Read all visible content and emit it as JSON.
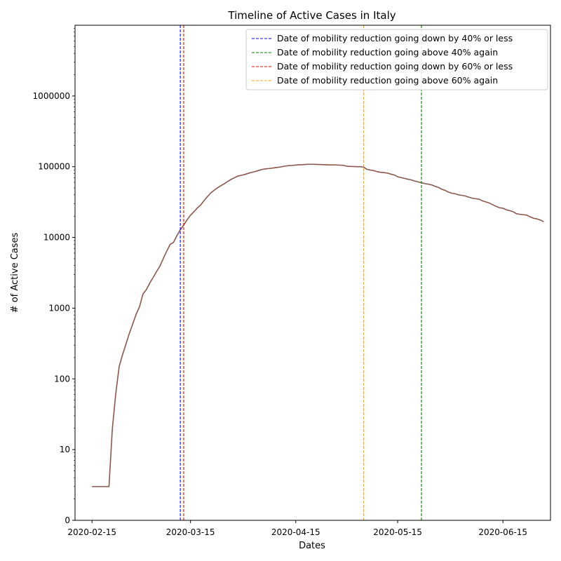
{
  "chart_data": {
    "type": "line",
    "title": "Timeline of Active Cases in Italy",
    "xlabel": "Dates",
    "ylabel": "# of Active Cases",
    "y_scale": "log",
    "xlim": [
      "2020-02-10",
      "2020-06-29"
    ],
    "ylim_display": [
      1,
      10000000
    ],
    "x_ticks": [
      "2020-02-15",
      "2020-03-15",
      "2020-04-15",
      "2020-05-15",
      "2020-06-15"
    ],
    "y_ticks": [
      {
        "label": "0",
        "value": 1
      },
      {
        "label": "10",
        "value": 10
      },
      {
        "label": "100",
        "value": 100
      },
      {
        "label": "1000",
        "value": 1000
      },
      {
        "label": "10000",
        "value": 10000
      },
      {
        "label": "100000",
        "value": 100000
      },
      {
        "label": "1000000",
        "value": 1000000
      }
    ],
    "grid": false,
    "legend_position": "upper-right",
    "series": [
      {
        "color": "#8c564b",
        "points": [
          [
            "2020-02-15",
            3
          ],
          [
            "2020-02-17",
            3
          ],
          [
            "2020-02-18",
            3
          ],
          [
            "2020-02-19",
            3
          ],
          [
            "2020-02-20",
            3
          ],
          [
            "2020-02-21",
            20
          ],
          [
            "2020-02-22",
            62
          ],
          [
            "2020-02-23",
            150
          ],
          [
            "2020-02-24",
            220
          ],
          [
            "2020-02-25",
            311
          ],
          [
            "2020-02-26",
            440
          ],
          [
            "2020-02-27",
            600
          ],
          [
            "2020-02-28",
            820
          ],
          [
            "2020-02-29",
            1050
          ],
          [
            "2020-03-01",
            1580
          ],
          [
            "2020-03-02",
            1830
          ],
          [
            "2020-03-03",
            2260
          ],
          [
            "2020-03-04",
            2710
          ],
          [
            "2020-03-05",
            3300
          ],
          [
            "2020-03-06",
            3920
          ],
          [
            "2020-03-07",
            5060
          ],
          [
            "2020-03-08",
            6390
          ],
          [
            "2020-03-09",
            7980
          ],
          [
            "2020-03-10",
            8510
          ],
          [
            "2020-03-11",
            10600
          ],
          [
            "2020-03-12",
            12800
          ],
          [
            "2020-03-13",
            14950
          ],
          [
            "2020-03-14",
            17750
          ],
          [
            "2020-03-15",
            20600
          ],
          [
            "2020-03-16",
            23070
          ],
          [
            "2020-03-17",
            26060
          ],
          [
            "2020-03-18",
            28710
          ],
          [
            "2020-03-19",
            33190
          ],
          [
            "2020-03-20",
            37860
          ],
          [
            "2020-03-21",
            42680
          ],
          [
            "2020-03-22",
            46640
          ],
          [
            "2020-03-23",
            50420
          ],
          [
            "2020-03-24",
            54030
          ],
          [
            "2020-03-25",
            57520
          ],
          [
            "2020-03-26",
            62010
          ],
          [
            "2020-03-27",
            66410
          ],
          [
            "2020-03-28",
            70070
          ],
          [
            "2020-03-29",
            73880
          ],
          [
            "2020-03-30",
            75520
          ],
          [
            "2020-03-31",
            77630
          ],
          [
            "2020-04-01",
            80570
          ],
          [
            "2020-04-02",
            83050
          ],
          [
            "2020-04-03",
            85390
          ],
          [
            "2020-04-04",
            88270
          ],
          [
            "2020-04-05",
            91240
          ],
          [
            "2020-04-06",
            93190
          ],
          [
            "2020-04-07",
            94070
          ],
          [
            "2020-04-08",
            95260
          ],
          [
            "2020-04-09",
            96880
          ],
          [
            "2020-04-10",
            98270
          ],
          [
            "2020-04-11",
            100270
          ],
          [
            "2020-04-12",
            102250
          ],
          [
            "2020-04-13",
            103620
          ],
          [
            "2020-04-14",
            104290
          ],
          [
            "2020-04-15",
            105420
          ],
          [
            "2020-04-16",
            106610
          ],
          [
            "2020-04-17",
            106960
          ],
          [
            "2020-04-18",
            107770
          ],
          [
            "2020-04-19",
            108260
          ],
          [
            "2020-04-20",
            108240
          ],
          [
            "2020-04-21",
            107710
          ],
          [
            "2020-04-22",
            107410
          ],
          [
            "2020-04-23",
            106850
          ],
          [
            "2020-04-24",
            106530
          ],
          [
            "2020-04-25",
            105850
          ],
          [
            "2020-04-26",
            106100
          ],
          [
            "2020-04-27",
            105810
          ],
          [
            "2020-04-28",
            105200
          ],
          [
            "2020-04-29",
            104660
          ],
          [
            "2020-04-30",
            101550
          ],
          [
            "2020-05-01",
            100940
          ],
          [
            "2020-05-02",
            100700
          ],
          [
            "2020-05-03",
            100180
          ],
          [
            "2020-05-04",
            99980
          ],
          [
            "2020-05-05",
            98470
          ],
          [
            "2020-05-06",
            91530
          ],
          [
            "2020-05-07",
            89620
          ],
          [
            "2020-05-08",
            87960
          ],
          [
            "2020-05-09",
            84840
          ],
          [
            "2020-05-10",
            83320
          ],
          [
            "2020-05-11",
            82490
          ],
          [
            "2020-05-12",
            81270
          ],
          [
            "2020-05-13",
            78460
          ],
          [
            "2020-05-14",
            76440
          ],
          [
            "2020-05-15",
            72070
          ],
          [
            "2020-05-16",
            70190
          ],
          [
            "2020-05-17",
            68350
          ],
          [
            "2020-05-18",
            66550
          ],
          [
            "2020-05-19",
            65130
          ],
          [
            "2020-05-20",
            62750
          ],
          [
            "2020-05-21",
            60960
          ],
          [
            "2020-05-22",
            59320
          ],
          [
            "2020-05-23",
            57750
          ],
          [
            "2020-05-24",
            56590
          ],
          [
            "2020-05-25",
            55300
          ],
          [
            "2020-05-26",
            52940
          ],
          [
            "2020-05-27",
            50970
          ],
          [
            "2020-05-28",
            47990
          ],
          [
            "2020-05-29",
            46180
          ],
          [
            "2020-05-30",
            43690
          ],
          [
            "2020-05-31",
            42070
          ],
          [
            "2020-06-01",
            41370
          ],
          [
            "2020-06-02",
            39890
          ],
          [
            "2020-06-03",
            39300
          ],
          [
            "2020-06-04",
            38430
          ],
          [
            "2020-06-05",
            36980
          ],
          [
            "2020-06-06",
            35870
          ],
          [
            "2020-06-07",
            35260
          ],
          [
            "2020-06-08",
            34730
          ],
          [
            "2020-06-09",
            32870
          ],
          [
            "2020-06-10",
            31710
          ],
          [
            "2020-06-11",
            30640
          ],
          [
            "2020-06-12",
            28990
          ],
          [
            "2020-06-13",
            27480
          ],
          [
            "2020-06-14",
            26270
          ],
          [
            "2020-06-15",
            25900
          ],
          [
            "2020-06-16",
            24570
          ],
          [
            "2020-06-17",
            23930
          ],
          [
            "2020-06-18",
            23100
          ],
          [
            "2020-06-19",
            21640
          ],
          [
            "2020-06-20",
            21210
          ],
          [
            "2020-06-21",
            20970
          ],
          [
            "2020-06-22",
            20640
          ],
          [
            "2020-06-23",
            19570
          ],
          [
            "2020-06-24",
            18660
          ],
          [
            "2020-06-25",
            18300
          ],
          [
            "2020-06-26",
            17640
          ],
          [
            "2020-06-27",
            16680
          ]
        ]
      }
    ],
    "vlines": [
      {
        "label": "Date of mobility reduction going down by 40% or less",
        "date": "2020-03-12",
        "color": "#0000ff"
      },
      {
        "label": "Date of mobility reduction going above 40% again",
        "date": "2020-05-22",
        "color": "#008000"
      },
      {
        "label": "Date of mobility reduction going down by 60% or less",
        "date": "2020-03-13",
        "color": "#ff0000"
      },
      {
        "label": "Date of mobility reduction going above 60% again",
        "date": "2020-05-05",
        "color": "#ffa500"
      }
    ]
  }
}
